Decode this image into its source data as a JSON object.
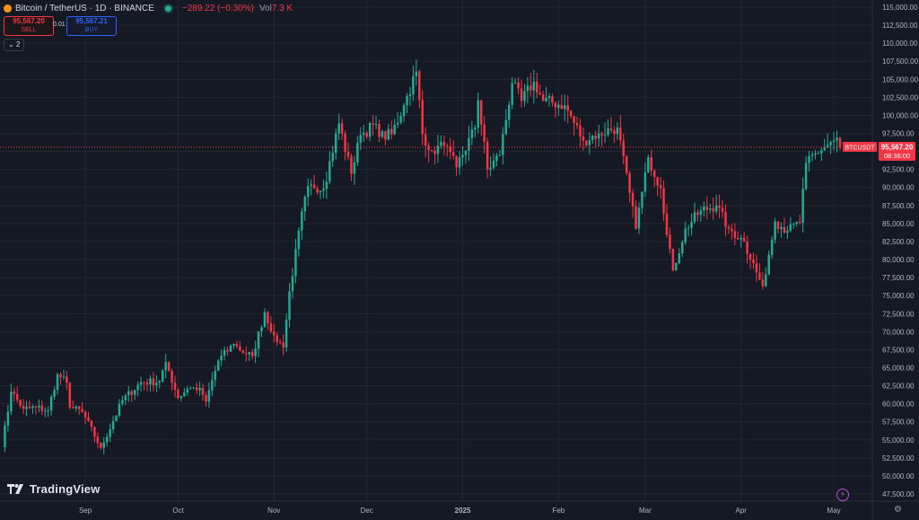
{
  "header": {
    "title": "Bitcoin / TetherUS · 1D · BINANCE",
    "change": "−289.22 (−0.30%)",
    "volume_label": "Vol",
    "volume_value": "7.3 K"
  },
  "trade": {
    "sell_price": "95,567.20",
    "sell_label": "SELL",
    "spread": "0.01",
    "buy_price": "95,567.21",
    "buy_label": "BUY"
  },
  "indicators_toggle": "2",
  "brand": "TradingView",
  "colors": {
    "up": "#22ab94",
    "down": "#f23645",
    "background": "#151924",
    "grid": "#232632",
    "axis_text": "#b2b5be"
  },
  "chart_data": {
    "type": "candlestick",
    "symbol": "BTCUSDT",
    "last_price": "95,567.20",
    "countdown": "08:36:00",
    "ylim": [
      46500,
      116000
    ],
    "yticks": [
      "47,500.00",
      "50,000.00",
      "52,500.00",
      "55,000.00",
      "57,500.00",
      "60,000.00",
      "62,500.00",
      "65,000.00",
      "67,500.00",
      "70,000.00",
      "72,500.00",
      "75,000.00",
      "77,500.00",
      "80,000.00",
      "82,500.00",
      "85,000.00",
      "87,500.00",
      "90,000.00",
      "92,500.00",
      "95,000.00",
      "97,500.00",
      "100,000.00",
      "102,500.00",
      "105,000.00",
      "107,500.00",
      "110,000.00",
      "112,500.00",
      "115,000.00"
    ],
    "xlabels": [
      {
        "label": "Sep",
        "date": "2024-09-01"
      },
      {
        "label": "Oct",
        "date": "2024-10-01"
      },
      {
        "label": "Nov",
        "date": "2024-11-01"
      },
      {
        "label": "Dec",
        "date": "2024-12-01"
      },
      {
        "label": "2025",
        "date": "2025-01-01",
        "bold": true
      },
      {
        "label": "Feb",
        "date": "2025-02-01"
      },
      {
        "label": "Mar",
        "date": "2025-03-01"
      },
      {
        "label": "Apr",
        "date": "2025-04-01"
      },
      {
        "label": "May",
        "date": "2025-05-01"
      }
    ],
    "closes": [
      {
        "date": "2024-08-05",
        "close": 54000
      },
      {
        "date": "2024-08-08",
        "close": 61700
      },
      {
        "date": "2024-08-12",
        "close": 59300
      },
      {
        "date": "2024-08-16",
        "close": 59500
      },
      {
        "date": "2024-08-20",
        "close": 59100
      },
      {
        "date": "2024-08-23",
        "close": 64100
      },
      {
        "date": "2024-08-26",
        "close": 62900
      },
      {
        "date": "2024-08-27",
        "close": 59500
      },
      {
        "date": "2024-08-31",
        "close": 58900
      },
      {
        "date": "2024-09-06",
        "close": 53900
      },
      {
        "date": "2024-09-10",
        "close": 57600
      },
      {
        "date": "2024-09-13",
        "close": 60500
      },
      {
        "date": "2024-09-19",
        "close": 63000
      },
      {
        "date": "2024-09-25",
        "close": 63100
      },
      {
        "date": "2024-09-27",
        "close": 65800
      },
      {
        "date": "2024-10-01",
        "close": 60800
      },
      {
        "date": "2024-10-04",
        "close": 62100
      },
      {
        "date": "2024-10-08",
        "close": 62200
      },
      {
        "date": "2024-10-10",
        "close": 60300
      },
      {
        "date": "2024-10-14",
        "close": 66000
      },
      {
        "date": "2024-10-19",
        "close": 68300
      },
      {
        "date": "2024-10-21",
        "close": 67400
      },
      {
        "date": "2024-10-25",
        "close": 66600
      },
      {
        "date": "2024-10-29",
        "close": 72700
      },
      {
        "date": "2024-11-01",
        "close": 69500
      },
      {
        "date": "2024-11-04",
        "close": 67800
      },
      {
        "date": "2024-11-06",
        "close": 75600
      },
      {
        "date": "2024-11-11",
        "close": 88700
      },
      {
        "date": "2024-11-13",
        "close": 90400
      },
      {
        "date": "2024-11-17",
        "close": 89800
      },
      {
        "date": "2024-11-22",
        "close": 98900
      },
      {
        "date": "2024-11-26",
        "close": 91900
      },
      {
        "date": "2024-11-29",
        "close": 97300
      },
      {
        "date": "2024-12-04",
        "close": 98800
      },
      {
        "date": "2024-12-05",
        "close": 97000
      },
      {
        "date": "2024-12-09",
        "close": 97400
      },
      {
        "date": "2024-12-13",
        "close": 101400
      },
      {
        "date": "2024-12-17",
        "close": 106100
      },
      {
        "date": "2024-12-19",
        "close": 97400
      },
      {
        "date": "2024-12-22",
        "close": 95100
      },
      {
        "date": "2024-12-26",
        "close": 95800
      },
      {
        "date": "2024-12-30",
        "close": 92800
      },
      {
        "date": "2025-01-05",
        "close": 98300
      },
      {
        "date": "2025-01-06",
        "close": 102100
      },
      {
        "date": "2025-01-09",
        "close": 92500
      },
      {
        "date": "2025-01-13",
        "close": 94500
      },
      {
        "date": "2025-01-17",
        "close": 104500
      },
      {
        "date": "2025-01-20",
        "close": 102000
      },
      {
        "date": "2025-01-24",
        "close": 104700
      },
      {
        "date": "2025-01-27",
        "close": 102000
      },
      {
        "date": "2025-02-03",
        "close": 101400
      },
      {
        "date": "2025-02-09",
        "close": 96500
      },
      {
        "date": "2025-02-14",
        "close": 97500
      },
      {
        "date": "2025-02-20",
        "close": 98300
      },
      {
        "date": "2025-02-26",
        "close": 84300
      },
      {
        "date": "2025-03-02",
        "close": 94200
      },
      {
        "date": "2025-03-06",
        "close": 89900
      },
      {
        "date": "2025-03-10",
        "close": 78500
      },
      {
        "date": "2025-03-14",
        "close": 84300
      },
      {
        "date": "2025-03-19",
        "close": 86800
      },
      {
        "date": "2025-03-24",
        "close": 87500
      },
      {
        "date": "2025-03-28",
        "close": 84300
      },
      {
        "date": "2025-04-02",
        "close": 82500
      },
      {
        "date": "2025-04-06",
        "close": 78200
      },
      {
        "date": "2025-04-08",
        "close": 76300
      },
      {
        "date": "2025-04-12",
        "close": 85300
      },
      {
        "date": "2025-04-16",
        "close": 84000
      },
      {
        "date": "2025-04-20",
        "close": 85100
      },
      {
        "date": "2025-04-22",
        "close": 93400
      },
      {
        "date": "2025-04-25",
        "close": 94700
      },
      {
        "date": "2025-05-01",
        "close": 96500
      },
      {
        "date": "2025-05-02",
        "close": 96900
      },
      {
        "date": "2025-05-03",
        "close": 95567
      }
    ]
  }
}
